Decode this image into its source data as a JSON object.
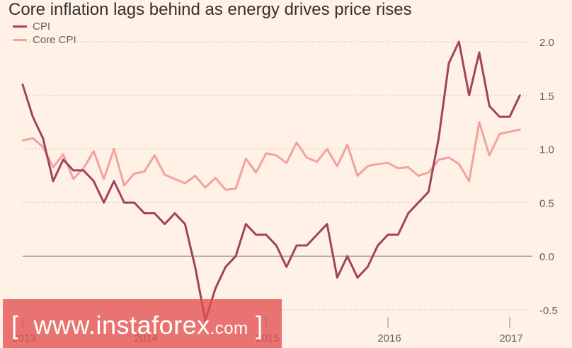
{
  "chart_data": {
    "type": "line",
    "title": "Core inflation lags behind as energy drives price rises",
    "xlabel": "",
    "ylabel": "",
    "ylim": [
      -0.5,
      2.0
    ],
    "yticks": [
      "2.0",
      "1.5",
      "1.0",
      "0.5",
      "0.0",
      "-0.5"
    ],
    "ytick_values": [
      2.0,
      1.5,
      1.0,
      0.5,
      0.0,
      -0.5
    ],
    "xticks": [
      "2013",
      "2014",
      "2015",
      "2016",
      "2017"
    ],
    "xtick_values": [
      2013,
      2014,
      2015,
      2016,
      2017
    ],
    "grid": true,
    "legend_position": "top-left",
    "x_start": 2013.0,
    "x_step_months": 1,
    "series": [
      {
        "name": "CPI",
        "color": "#a1425f",
        "values": [
          1.6,
          1.3,
          1.1,
          0.7,
          0.9,
          0.8,
          0.8,
          0.7,
          0.5,
          0.7,
          0.5,
          0.5,
          0.4,
          0.4,
          0.3,
          0.4,
          0.3,
          -0.1,
          -0.6,
          -0.3,
          -0.1,
          0.0,
          0.3,
          0.2,
          0.2,
          0.1,
          -0.1,
          0.1,
          0.1,
          0.2,
          0.3,
          -0.2,
          0.0,
          -0.2,
          -0.1,
          0.1,
          0.2,
          0.2,
          0.4,
          0.5,
          0.6,
          1.1,
          1.8,
          2.0,
          1.5,
          1.9,
          1.4,
          1.3,
          1.3,
          1.5
        ]
      },
      {
        "name": "Core CPI",
        "color": "#f2a39b",
        "values": [
          1.08,
          1.1,
          1.02,
          0.83,
          0.95,
          0.72,
          0.82,
          0.98,
          0.72,
          1.0,
          0.66,
          0.77,
          0.79,
          0.94,
          0.76,
          0.72,
          0.68,
          0.75,
          0.64,
          0.73,
          0.62,
          0.63,
          0.91,
          0.78,
          0.96,
          0.94,
          0.87,
          1.06,
          0.92,
          0.88,
          1.0,
          0.84,
          1.04,
          0.75,
          0.84,
          0.86,
          0.87,
          0.82,
          0.83,
          0.75,
          0.78,
          0.9,
          0.92,
          0.86,
          0.7,
          1.25,
          0.94,
          1.14,
          1.16,
          1.18
        ]
      }
    ]
  },
  "watermark": {
    "bracket_open": "[",
    "text": "www.instaforex",
    "suffix": ".com",
    "bracket_close": "]"
  }
}
